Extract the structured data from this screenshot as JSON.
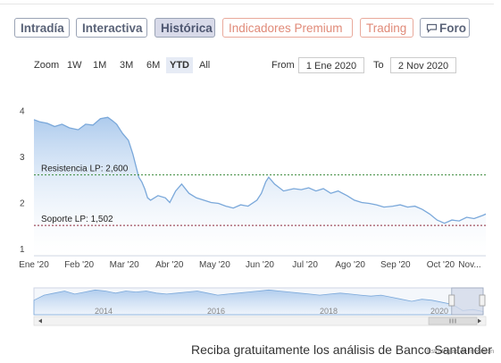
{
  "tabs": [
    {
      "label": "Intradía",
      "style": "normal"
    },
    {
      "label": "Interactiva",
      "style": "normal"
    },
    {
      "label": "Histórica",
      "style": "active"
    },
    {
      "label": "Indicadores Premium",
      "style": "premium"
    },
    {
      "label": "Trading",
      "style": "premium"
    },
    {
      "label": "Foro",
      "style": "normal",
      "icon": "chat-bubble-icon"
    }
  ],
  "toolbar": {
    "zoom_label": "Zoom",
    "zoom_buttons": [
      "1W",
      "1M",
      "3M",
      "6M",
      "YTD",
      "All"
    ],
    "selected_zoom": "YTD",
    "from_label": "From",
    "from_value": "1 Ene 2020",
    "to_label": "To",
    "to_value": "2 Nov 2020"
  },
  "colors": {
    "series_line": "#7aa8da",
    "series_fill_top": "#a9c8ec",
    "resistance_line": "#3a8a3a",
    "support_line": "#8a2a3a",
    "tab_border": "#9aa3b5",
    "premium_tab": "#e08a78",
    "navigator_mask": "#d2d8e8"
  },
  "chart_data": {
    "type": "area",
    "title": "",
    "xlabel": "",
    "ylabel": "",
    "ylim": [
      1,
      4
    ],
    "yticks": [
      1,
      2,
      3,
      4
    ],
    "x_ticks": [
      "Ene '20",
      "Feb '20",
      "Mar '20",
      "Abr '20",
      "May '20",
      "Jun '20",
      "Jul '20",
      "Ago '20",
      "Sep '20",
      "Oct '20",
      "Nov..."
    ],
    "x": [
      "2020-01-01",
      "2020-01-05",
      "2020-01-10",
      "2020-01-15",
      "2020-01-20",
      "2020-01-25",
      "2020-01-31",
      "2020-02-05",
      "2020-02-10",
      "2020-02-15",
      "2020-02-20",
      "2020-02-23",
      "2020-02-26",
      "2020-03-01",
      "2020-03-05",
      "2020-03-08",
      "2020-03-10",
      "2020-03-12",
      "2020-03-14",
      "2020-03-16",
      "2020-03-18",
      "2020-03-20",
      "2020-03-25",
      "2020-03-30",
      "2020-04-02",
      "2020-04-06",
      "2020-04-10",
      "2020-04-15",
      "2020-04-20",
      "2020-04-25",
      "2020-04-30",
      "2020-05-05",
      "2020-05-10",
      "2020-05-15",
      "2020-05-20",
      "2020-05-25",
      "2020-05-31",
      "2020-06-03",
      "2020-06-06",
      "2020-06-08",
      "2020-06-12",
      "2020-06-18",
      "2020-06-25",
      "2020-06-30",
      "2020-07-05",
      "2020-07-10",
      "2020-07-15",
      "2020-07-20",
      "2020-07-25",
      "2020-07-31",
      "2020-08-05",
      "2020-08-10",
      "2020-08-15",
      "2020-08-20",
      "2020-08-25",
      "2020-08-31",
      "2020-09-05",
      "2020-09-10",
      "2020-09-15",
      "2020-09-20",
      "2020-09-25",
      "2020-09-30",
      "2020-10-05",
      "2020-10-10",
      "2020-10-15",
      "2020-10-20",
      "2020-10-25",
      "2020-10-31",
      "2020-11-02"
    ],
    "series": [
      {
        "values": [
          3.8,
          3.75,
          3.72,
          3.65,
          3.7,
          3.62,
          3.58,
          3.7,
          3.68,
          3.82,
          3.85,
          3.78,
          3.7,
          3.5,
          3.35,
          3.05,
          2.8,
          2.55,
          2.45,
          2.3,
          2.1,
          2.05,
          2.15,
          2.1,
          2.0,
          2.25,
          2.4,
          2.2,
          2.1,
          2.05,
          2.0,
          1.98,
          1.92,
          1.88,
          1.95,
          1.92,
          2.05,
          2.2,
          2.45,
          2.55,
          2.4,
          2.25,
          2.3,
          2.28,
          2.32,
          2.25,
          2.3,
          2.2,
          2.25,
          2.15,
          2.05,
          2.0,
          1.98,
          1.95,
          1.9,
          1.92,
          1.95,
          1.9,
          1.92,
          1.85,
          1.75,
          1.62,
          1.55,
          1.62,
          1.6,
          1.68,
          1.65,
          1.72,
          1.75
        ]
      }
    ],
    "annotations": [
      {
        "label": "Resistencia LP: 2,600",
        "value": 2.6,
        "style": "dotted-line"
      },
      {
        "label": "Soporte LP: 1,502",
        "value": 1.502,
        "style": "dotted-line"
      }
    ],
    "navigator": {
      "x_ticks": [
        "2014",
        "2016",
        "2018",
        "2020"
      ],
      "values": [
        2.4,
        2.9,
        3.1,
        3.3,
        3.0,
        3.2,
        3.4,
        3.3,
        3.1,
        3.3,
        3.2,
        3.3,
        3.1,
        3.0,
        3.1,
        3.2,
        3.3,
        3.1,
        2.9,
        3.0,
        3.1,
        3.2,
        3.3,
        3.4,
        3.3,
        3.2,
        3.1,
        3.0,
        2.9,
        3.0,
        3.1,
        3.0,
        2.9,
        2.8,
        2.9,
        2.7,
        2.5,
        2.3,
        2.5,
        2.4,
        2.2,
        2.0,
        1.4,
        1.5,
        1.3
      ],
      "selected_start": 0.93
    },
    "grid": false,
    "legend": "none"
  },
  "credits": "Estrategias de Inversión",
  "footer_text": "Reciba gratuitamente los análisis de Banco Santander"
}
